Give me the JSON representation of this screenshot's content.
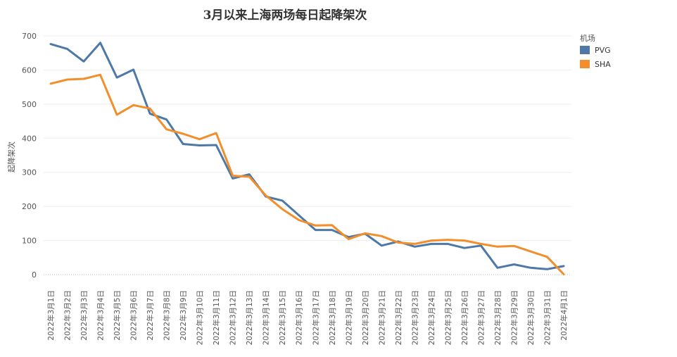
{
  "chart_data": {
    "type": "line",
    "title": "3月以来上海两场每日起降架次",
    "ylabel": "起降架次",
    "xlabel": "",
    "ylim": [
      0,
      700
    ],
    "yticks": [
      0,
      100,
      200,
      300,
      400,
      500,
      600,
      700
    ],
    "grid": true,
    "legend_title": "机场",
    "legend_position": "top-right",
    "categories": [
      "2022年3月1日",
      "2022年3月2日",
      "2022年3月3日",
      "2022年3月4日",
      "2022年3月5日",
      "2022年3月6日",
      "2022年3月7日",
      "2022年3月8日",
      "2022年3月9日",
      "2022年3月10日",
      "2022年3月11日",
      "2022年3月12日",
      "2022年3月13日",
      "2022年3月14日",
      "2022年3月15日",
      "2022年3月16日",
      "2022年3月17日",
      "2022年3月18日",
      "2022年3月19日",
      "2022年3月20日",
      "2022年3月21日",
      "2022年3月22日",
      "2022年3月23日",
      "2022年3月24日",
      "2022年3月25日",
      "2022年3月26日",
      "2022年3月27日",
      "2022年3月28日",
      "2022年3月29日",
      "2022年3月30日",
      "2022年3月31日",
      "2022年4月1日"
    ],
    "series": [
      {
        "name": "PVG",
        "color": "#4e79a7",
        "values": [
          676,
          662,
          625,
          680,
          578,
          601,
          472,
          455,
          383,
          379,
          380,
          282,
          294,
          229,
          217,
          174,
          131,
          131,
          110,
          120,
          85,
          97,
          82,
          90,
          90,
          78,
          85,
          20,
          30,
          20,
          16,
          25
        ]
      },
      {
        "name": "SHA",
        "color": "#f28e2b",
        "values": [
          560,
          572,
          574,
          586,
          469,
          497,
          487,
          426,
          413,
          397,
          415,
          290,
          287,
          232,
          192,
          160,
          144,
          145,
          104,
          121,
          113,
          94,
          90,
          100,
          102,
          100,
          90,
          82,
          84,
          68,
          52,
          1
        ]
      }
    ]
  }
}
